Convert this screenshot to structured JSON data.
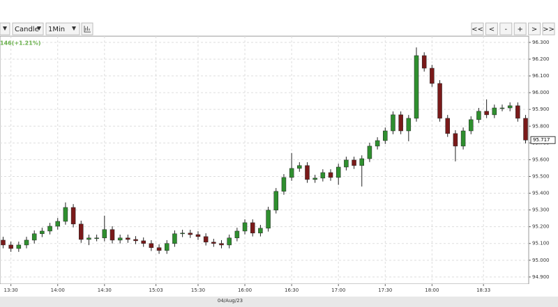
{
  "toolbar": {
    "chart_type": "Candle",
    "interval": "1Min",
    "nav_buttons": [
      "<<",
      "<",
      "-",
      "+",
      ">",
      ">>"
    ]
  },
  "chart_data": {
    "type": "candlestick",
    "change_label": "146(+1.21%)",
    "date_label": "04/Aug/23",
    "last_price": 95.717,
    "up_color": "#2f8f2f",
    "down_color": "#7a1a1a",
    "grid": true,
    "xlim": [
      803,
      1142
    ],
    "xticks": [
      {
        "value": 810,
        "label": "13:30"
      },
      {
        "value": 840,
        "label": "14:00"
      },
      {
        "value": 870,
        "label": "14:30"
      },
      {
        "value": 903,
        "label": "15:03"
      },
      {
        "value": 930,
        "label": "15:30"
      },
      {
        "value": 960,
        "label": "16:00"
      },
      {
        "value": 990,
        "label": "16:30"
      },
      {
        "value": 1020,
        "label": "17:00"
      },
      {
        "value": 1050,
        "label": "17:30"
      },
      {
        "value": 1080,
        "label": "18:00"
      },
      {
        "value": 1113,
        "label": "18:33"
      }
    ],
    "ylim": [
      94.858,
      96.337
    ],
    "yticks": [
      {
        "value": 94.9,
        "label": "94.900"
      },
      {
        "value": 95.0,
        "label": "95.000"
      },
      {
        "value": 95.1,
        "label": "95.100"
      },
      {
        "value": 95.2,
        "label": "95.200"
      },
      {
        "value": 95.3,
        "label": "95.300"
      },
      {
        "value": 95.4,
        "label": "95.400"
      },
      {
        "value": 95.5,
        "label": "95.500"
      },
      {
        "value": 95.6,
        "label": "95.600"
      },
      {
        "value": 95.7,
        "label": "95.700"
      },
      {
        "value": 95.8,
        "label": "95.800"
      },
      {
        "value": 95.9,
        "label": "95.900"
      },
      {
        "value": 96.0,
        "label": "96.000"
      },
      {
        "value": 96.1,
        "label": "96.100"
      },
      {
        "value": 96.2,
        "label": "96.200"
      },
      {
        "value": 96.3,
        "label": "96.300"
      }
    ],
    "x": [
      805,
      810,
      815,
      820,
      825,
      830,
      835,
      840,
      845,
      850,
      855,
      860,
      865,
      870,
      875,
      880,
      885,
      890,
      895,
      900,
      905,
      910,
      915,
      920,
      925,
      930,
      935,
      940,
      945,
      950,
      955,
      960,
      965,
      970,
      975,
      980,
      985,
      990,
      995,
      1000,
      1005,
      1010,
      1015,
      1020,
      1025,
      1030,
      1035,
      1040,
      1045,
      1050,
      1055,
      1060,
      1065,
      1070,
      1075,
      1080,
      1085,
      1090,
      1095,
      1100,
      1105,
      1110,
      1115,
      1120,
      1125,
      1130,
      1135,
      1140
    ],
    "open": [
      95.12,
      95.091,
      95.07,
      95.091,
      95.12,
      95.158,
      95.174,
      95.203,
      95.232,
      95.315,
      95.216,
      95.124,
      95.133,
      95.133,
      95.183,
      95.12,
      95.133,
      95.124,
      95.116,
      95.1,
      95.075,
      95.058,
      95.1,
      95.158,
      95.162,
      95.153,
      95.141,
      95.108,
      95.1,
      95.091,
      95.133,
      95.174,
      95.224,
      95.162,
      95.191,
      95.299,
      95.411,
      95.494,
      95.548,
      95.565,
      95.482,
      95.49,
      95.523,
      95.494,
      95.556,
      95.598,
      95.565,
      95.606,
      95.681,
      95.714,
      95.772,
      95.868,
      95.772,
      95.847,
      96.221,
      96.146,
      96.055,
      95.847,
      95.756,
      95.681,
      95.772,
      95.839,
      95.889,
      95.868,
      95.909,
      95.909,
      95.922,
      95.847
    ],
    "high": [
      95.14,
      95.111,
      95.111,
      95.14,
      95.178,
      95.194,
      95.223,
      95.252,
      95.345,
      95.335,
      95.236,
      95.153,
      95.153,
      95.266,
      95.203,
      95.153,
      95.153,
      95.144,
      95.136,
      95.12,
      95.095,
      95.12,
      95.178,
      95.182,
      95.182,
      95.173,
      95.161,
      95.128,
      95.12,
      95.153,
      95.194,
      95.244,
      95.244,
      95.211,
      95.319,
      95.431,
      95.514,
      95.64,
      95.585,
      95.585,
      95.51,
      95.543,
      95.543,
      95.576,
      95.618,
      95.618,
      95.626,
      95.701,
      95.734,
      95.792,
      95.888,
      95.888,
      95.867,
      96.27,
      96.241,
      96.166,
      96.075,
      95.867,
      95.776,
      95.792,
      95.859,
      95.909,
      95.96,
      95.929,
      95.929,
      95.942,
      95.942,
      95.867
    ],
    "low": [
      95.071,
      95.05,
      95.05,
      95.071,
      95.1,
      95.138,
      95.154,
      95.183,
      95.212,
      95.196,
      95.104,
      95.09,
      95.113,
      95.113,
      95.1,
      95.1,
      95.104,
      95.096,
      95.08,
      95.055,
      95.038,
      95.038,
      95.08,
      95.138,
      95.133,
      95.121,
      95.088,
      95.08,
      95.071,
      95.071,
      95.113,
      95.154,
      95.142,
      95.142,
      95.171,
      95.279,
      95.391,
      95.474,
      95.528,
      95.462,
      95.462,
      95.47,
      95.474,
      95.45,
      95.536,
      95.545,
      95.44,
      95.586,
      95.661,
      95.694,
      95.752,
      95.752,
      95.71,
      95.827,
      96.126,
      96.035,
      95.827,
      95.736,
      95.59,
      95.661,
      95.752,
      95.819,
      95.848,
      95.848,
      95.889,
      95.889,
      95.827,
      95.697
    ],
    "close": [
      95.091,
      95.07,
      95.091,
      95.12,
      95.158,
      95.174,
      95.203,
      95.232,
      95.315,
      95.216,
      95.124,
      95.133,
      95.133,
      95.183,
      95.12,
      95.133,
      95.124,
      95.116,
      95.1,
      95.075,
      95.058,
      95.1,
      95.158,
      95.162,
      95.153,
      95.141,
      95.108,
      95.1,
      95.091,
      95.133,
      95.174,
      95.224,
      95.162,
      95.191,
      95.299,
      95.411,
      95.494,
      95.548,
      95.565,
      95.482,
      95.49,
      95.523,
      95.494,
      95.556,
      95.598,
      95.565,
      95.606,
      95.681,
      95.714,
      95.772,
      95.868,
      95.772,
      95.847,
      96.221,
      96.146,
      96.055,
      95.847,
      95.756,
      95.681,
      95.772,
      95.839,
      95.889,
      95.868,
      95.909,
      95.909,
      95.922,
      95.847,
      95.717
    ]
  }
}
